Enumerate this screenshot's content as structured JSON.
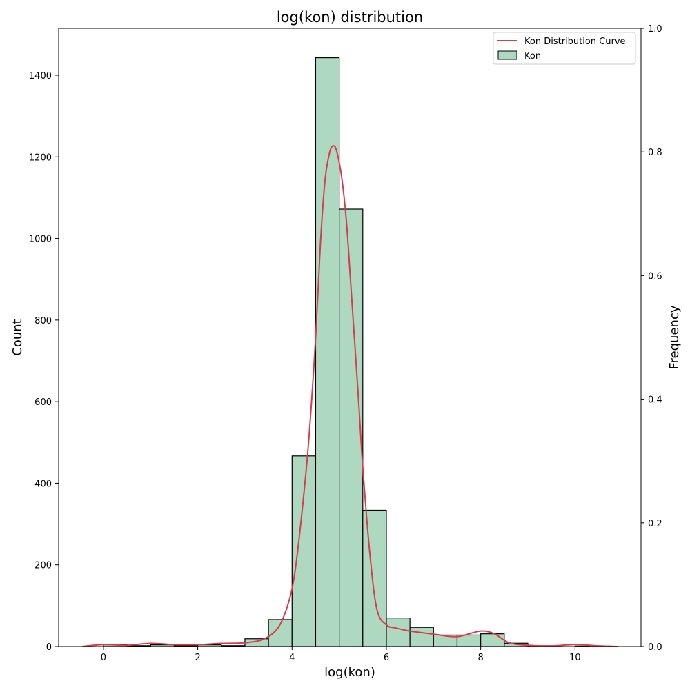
{
  "chart_data": {
    "type": "bar",
    "title": "log(kon) distribution",
    "xlabel": "log(kon)",
    "ylabel": "Count",
    "ylabel_right": "Frequency",
    "xlim": [
      -0.95,
      11.4
    ],
    "ylim": [
      0,
      1515
    ],
    "ylim_right": [
      0,
      1.0
    ],
    "x_ticks": [
      0,
      2,
      4,
      6,
      8,
      10
    ],
    "y_ticks": [
      0,
      200,
      400,
      600,
      800,
      1000,
      1200,
      1400
    ],
    "y_ticks_right": [
      "0.0",
      "0.2",
      "0.4",
      "0.6",
      "0.8",
      "1.0"
    ],
    "bin_edges": [
      0,
      0.5,
      1,
      1.5,
      2,
      2.5,
      3,
      3.5,
      4,
      4.5,
      5,
      5.5,
      6,
      6.5,
      7,
      7.5,
      8,
      8.5,
      9,
      9.5,
      10,
      10.5
    ],
    "series": [
      {
        "name": "Kon",
        "kind": "histogram",
        "color": "#aed8bf",
        "edge_color": "#000000",
        "values": [
          5,
          2,
          4,
          2,
          4,
          2,
          19,
          66,
          467,
          1443,
          1072,
          334,
          70,
          47,
          28,
          28,
          31,
          8,
          1,
          0,
          1
        ]
      },
      {
        "name": "Kon Distribution Curve",
        "kind": "kde",
        "color": "#d63c49",
        "x": [
          -0.45,
          0.0,
          0.5,
          1.0,
          1.5,
          2.0,
          2.5,
          3.0,
          3.4,
          3.7,
          3.9,
          4.05,
          4.2,
          4.35,
          4.5,
          4.6,
          4.7,
          4.8,
          4.88,
          4.95,
          5.05,
          5.15,
          5.25,
          5.4,
          5.5,
          5.65,
          5.8,
          6.0,
          6.2,
          6.5,
          7.0,
          7.5,
          8.0,
          8.3,
          8.6,
          9.0,
          9.5,
          10.0,
          10.5,
          10.9
        ],
        "y": [
          0,
          0.003,
          0.002,
          0.005,
          0.003,
          0.003,
          0.005,
          0.006,
          0.012,
          0.03,
          0.065,
          0.115,
          0.21,
          0.33,
          0.5,
          0.65,
          0.755,
          0.8,
          0.81,
          0.8,
          0.76,
          0.69,
          0.58,
          0.41,
          0.29,
          0.15,
          0.06,
          0.035,
          0.03,
          0.025,
          0.02,
          0.016,
          0.025,
          0.02,
          0.006,
          0.002,
          0.001,
          0.003,
          0.001,
          0
        ]
      }
    ],
    "legend": {
      "placement": "upper-right",
      "entries": [
        "Kon Distribution Curve",
        "Kon"
      ]
    },
    "grid": false
  }
}
